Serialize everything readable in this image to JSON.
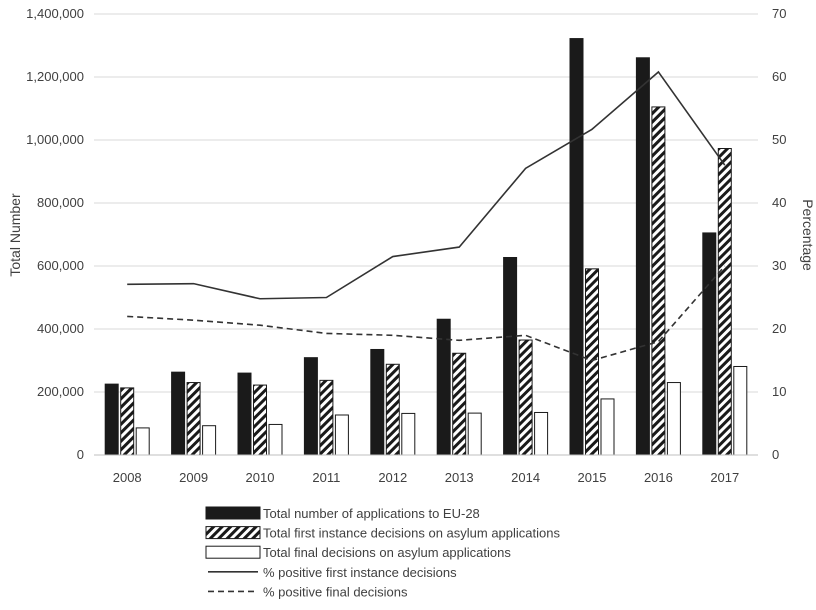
{
  "chart_data": {
    "type": "bar",
    "title": "",
    "categories": [
      "2008",
      "2009",
      "2010",
      "2011",
      "2012",
      "2013",
      "2014",
      "2015",
      "2016",
      "2017"
    ],
    "xlabel": "",
    "ylabel": "Total Number",
    "ylabel_right": "Percentage",
    "ylim": [
      0,
      1400000
    ],
    "ylim_right": [
      0,
      70
    ],
    "y_ticks": [
      "0",
      "200,000",
      "400,000",
      "600,000",
      "800,000",
      "1,000,000",
      "1,200,000",
      "1,400,000"
    ],
    "y_ticks_right": [
      "0",
      "10",
      "20",
      "30",
      "40",
      "50",
      "60",
      "70"
    ],
    "grid": "horizontal",
    "legend_position": "bottom",
    "series": [
      {
        "name": "Total number of applications to EU-28",
        "kind": "bar",
        "fill": "solid",
        "color": "#1a1a1a",
        "values": [
          225000,
          263000,
          260000,
          309000,
          335000,
          431000,
          627000,
          1322000,
          1261000,
          705000
        ]
      },
      {
        "name": "Total first instance decisions on asylum applications",
        "kind": "bar",
        "fill": "hatched",
        "color": "#1a1a1a",
        "values": [
          213000,
          230000,
          222000,
          237000,
          288000,
          323000,
          365000,
          591000,
          1105000,
          973000
        ]
      },
      {
        "name": "Total final decisions on asylum applications",
        "kind": "bar",
        "fill": "empty",
        "color": "#1a1a1a",
        "values": [
          86000,
          93000,
          97000,
          127000,
          132000,
          133000,
          135000,
          178000,
          230000,
          281000
        ]
      },
      {
        "name": "% positive first instance decisions",
        "kind": "line",
        "axis": "right",
        "dash": "solid",
        "color": "#333333",
        "values": [
          27.1,
          27.2,
          24.8,
          25.0,
          31.5,
          33.0,
          45.5,
          51.7,
          60.8,
          46.0
        ]
      },
      {
        "name": "% positive final decisions",
        "kind": "line",
        "axis": "right",
        "dash": "dashed",
        "color": "#333333",
        "values": [
          22.0,
          21.4,
          20.6,
          19.3,
          19.0,
          18.2,
          19.0,
          15.0,
          18.0,
          30.0
        ]
      }
    ]
  }
}
